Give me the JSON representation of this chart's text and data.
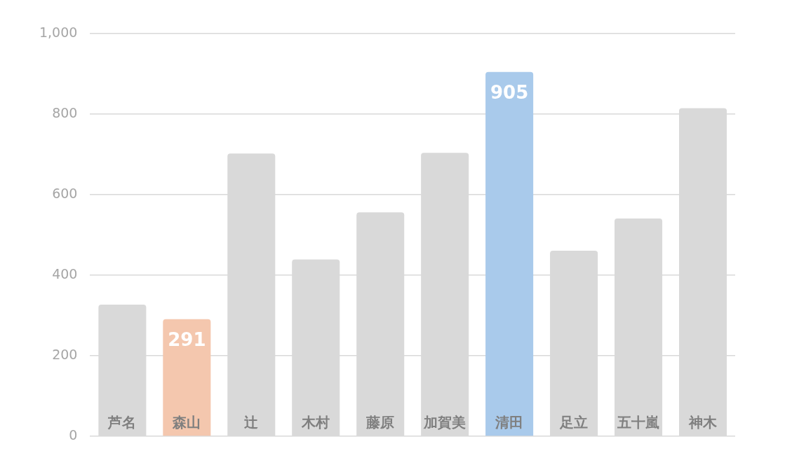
{
  "chart_data": {
    "type": "bar",
    "categories": [
      "芦名",
      "森山",
      "辻",
      "木村",
      "藤原",
      "加賀美",
      "清田",
      "足立",
      "五十嵐",
      "神木"
    ],
    "values": [
      327,
      291,
      702,
      439,
      556,
      704,
      905,
      461,
      541,
      815
    ],
    "colors": [
      "#d9d9d9",
      "#f4c7ae",
      "#d9d9d9",
      "#d9d9d9",
      "#d9d9d9",
      "#d9d9d9",
      "#a9caeb",
      "#d9d9d9",
      "#d9d9d9",
      "#d9d9d9"
    ],
    "value_labels": [
      null,
      "291",
      null,
      null,
      null,
      null,
      "905",
      null,
      null,
      null
    ],
    "ylim": [
      0,
      1000
    ],
    "yticks": [
      {
        "value": 0,
        "label": "0"
      },
      {
        "value": 200,
        "label": "200"
      },
      {
        "value": 400,
        "label": "400"
      },
      {
        "value": 600,
        "label": "600"
      },
      {
        "value": 800,
        "label": "800"
      },
      {
        "value": 1000,
        "label": "1,000"
      }
    ],
    "grid": "y",
    "legend": false
  }
}
